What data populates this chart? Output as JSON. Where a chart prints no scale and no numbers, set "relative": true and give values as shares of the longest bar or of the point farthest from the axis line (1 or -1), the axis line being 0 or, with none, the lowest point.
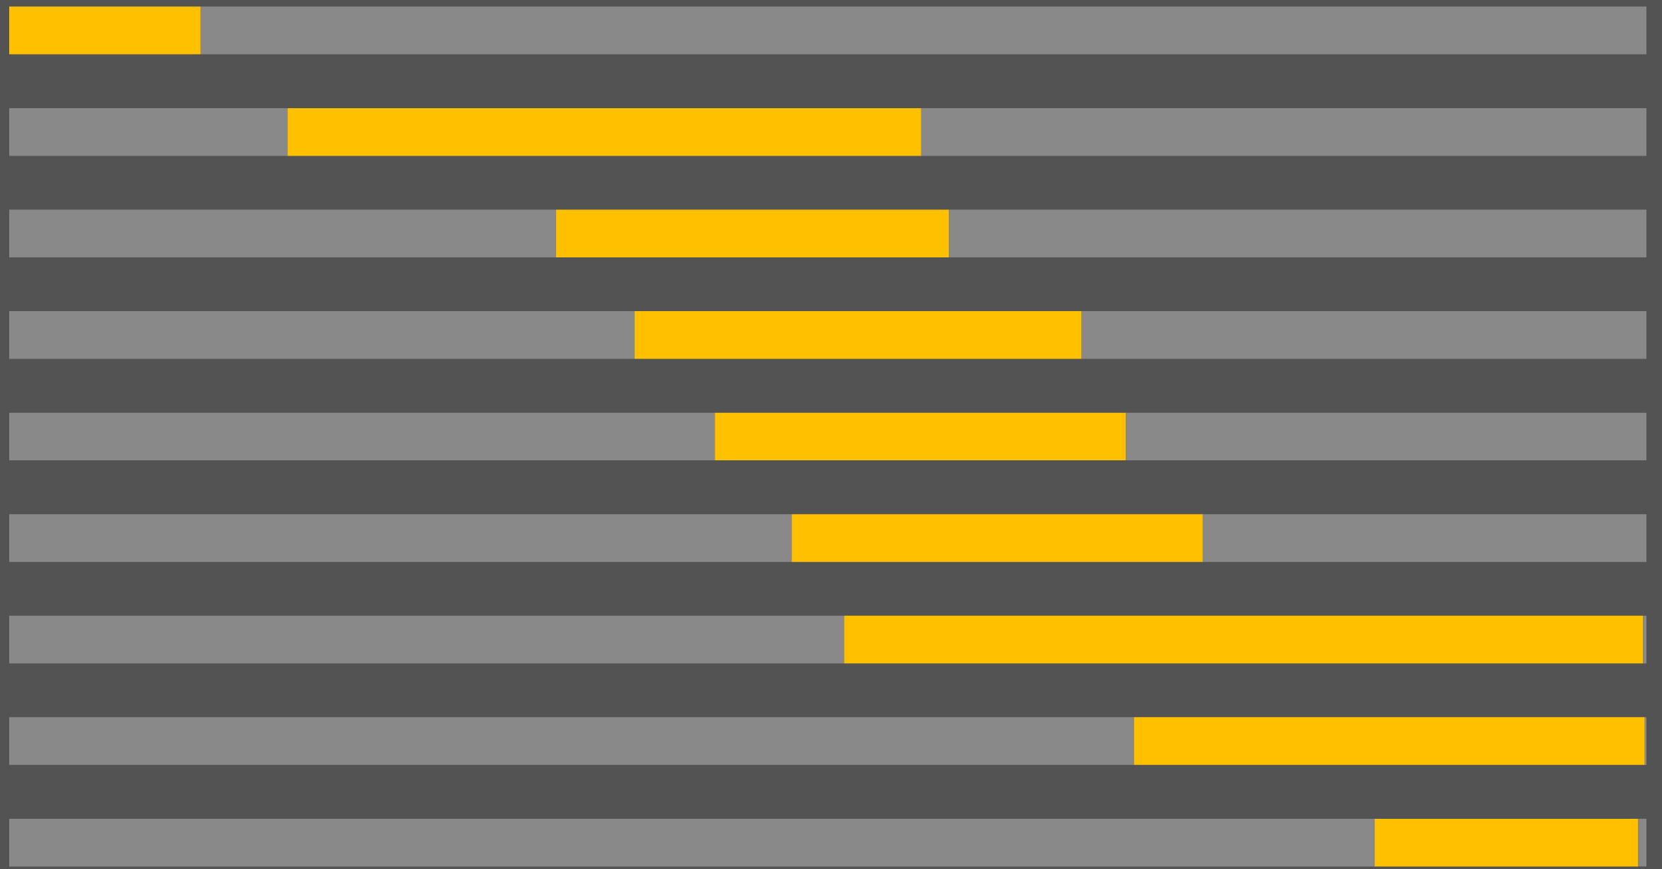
{
  "chart_data": {
    "type": "bar",
    "orientation": "horizontal",
    "relative": true,
    "stacked": true,
    "grid": false,
    "legend": false,
    "categories": [
      null,
      null,
      null,
      null,
      null,
      null,
      null,
      null,
      null
    ],
    "series": [
      {
        "color": "#898989",
        "values": [
          0,
          0.17,
          0.334,
          0.382,
          0.431,
          0.478,
          0.51,
          0.687,
          0.834
        ]
      },
      {
        "color": "#ffc000",
        "values": [
          0.117,
          0.387,
          0.24,
          0.273,
          0.251,
          0.251,
          0.488,
          0.312,
          0.161
        ]
      },
      {
        "color": "#898989",
        "values": [
          0.883,
          0.443,
          0.426,
          0.345,
          0.318,
          0.271,
          0.002,
          0.001,
          0.005
        ]
      }
    ]
  }
}
